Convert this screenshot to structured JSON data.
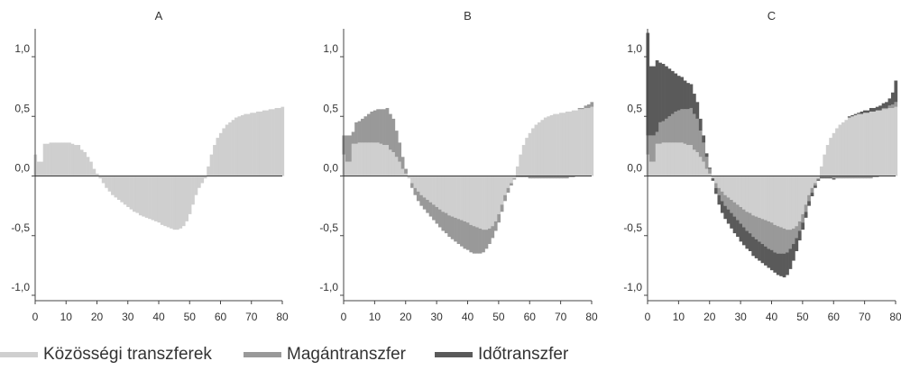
{
  "chart_data": [
    {
      "type": "area",
      "title": "A",
      "xlim": [
        0,
        80
      ],
      "ylim": [
        -1.0,
        1.0
      ],
      "xticks": [
        "0",
        "10",
        "20",
        "30",
        "40",
        "50",
        "60",
        "70",
        "80"
      ],
      "yticks": [
        "-1,0",
        "-0,5",
        "0,0",
        "0,5",
        "1,0"
      ],
      "series": [
        {
          "name": "Közösségi transzferek",
          "color": "#cfcfcf",
          "x": [
            0,
            1,
            2,
            3,
            4,
            5,
            6,
            7,
            8,
            9,
            10,
            11,
            12,
            13,
            14,
            15,
            16,
            17,
            18,
            19,
            20,
            21,
            22,
            23,
            24,
            25,
            26,
            27,
            28,
            29,
            30,
            31,
            32,
            33,
            34,
            35,
            36,
            37,
            38,
            39,
            40,
            41,
            42,
            43,
            44,
            45,
            46,
            47,
            48,
            49,
            50,
            51,
            52,
            53,
            54,
            55,
            56,
            57,
            58,
            59,
            60,
            61,
            62,
            63,
            64,
            65,
            66,
            67,
            68,
            69,
            70,
            71,
            72,
            73,
            74,
            75,
            76,
            77,
            78,
            79,
            80
          ],
          "values": [
            0.18,
            0.12,
            0.12,
            0.27,
            0.27,
            0.28,
            0.28,
            0.28,
            0.28,
            0.28,
            0.28,
            0.28,
            0.27,
            0.26,
            0.26,
            0.22,
            0.2,
            0.16,
            0.12,
            0.06,
            0.02,
            -0.02,
            -0.06,
            -0.1,
            -0.13,
            -0.16,
            -0.18,
            -0.2,
            -0.22,
            -0.24,
            -0.26,
            -0.28,
            -0.3,
            -0.31,
            -0.33,
            -0.34,
            -0.35,
            -0.36,
            -0.37,
            -0.38,
            -0.39,
            -0.41,
            -0.42,
            -0.43,
            -0.44,
            -0.45,
            -0.45,
            -0.44,
            -0.42,
            -0.38,
            -0.32,
            -0.24,
            -0.16,
            -0.1,
            -0.06,
            -0.02,
            0.08,
            0.18,
            0.26,
            0.32,
            0.36,
            0.4,
            0.43,
            0.45,
            0.47,
            0.49,
            0.5,
            0.51,
            0.52,
            0.52,
            0.53,
            0.53,
            0.54,
            0.54,
            0.55,
            0.55,
            0.56,
            0.56,
            0.57,
            0.57,
            0.58
          ]
        }
      ]
    },
    {
      "type": "area",
      "title": "B",
      "xlim": [
        0,
        80
      ],
      "ylim": [
        -1.0,
        1.0
      ],
      "xticks": [
        "0",
        "10",
        "20",
        "30",
        "40",
        "50",
        "60",
        "70",
        "80"
      ],
      "yticks": [
        "-1,0",
        "-0,5",
        "0,0",
        "0,5",
        "1,0"
      ],
      "series": [
        {
          "name": "Közösségi transzferek",
          "color": "#cfcfcf",
          "x": [
            0,
            1,
            2,
            3,
            4,
            5,
            6,
            7,
            8,
            9,
            10,
            11,
            12,
            13,
            14,
            15,
            16,
            17,
            18,
            19,
            20,
            21,
            22,
            23,
            24,
            25,
            26,
            27,
            28,
            29,
            30,
            31,
            32,
            33,
            34,
            35,
            36,
            37,
            38,
            39,
            40,
            41,
            42,
            43,
            44,
            45,
            46,
            47,
            48,
            49,
            50,
            51,
            52,
            53,
            54,
            55,
            56,
            57,
            58,
            59,
            60,
            61,
            62,
            63,
            64,
            65,
            66,
            67,
            68,
            69,
            70,
            71,
            72,
            73,
            74,
            75,
            76,
            77,
            78,
            79,
            80
          ],
          "values": [
            0.18,
            0.12,
            0.12,
            0.27,
            0.27,
            0.28,
            0.28,
            0.28,
            0.28,
            0.28,
            0.28,
            0.28,
            0.27,
            0.26,
            0.26,
            0.22,
            0.2,
            0.16,
            0.12,
            0.06,
            0.02,
            -0.02,
            -0.06,
            -0.1,
            -0.13,
            -0.16,
            -0.18,
            -0.2,
            -0.22,
            -0.24,
            -0.26,
            -0.28,
            -0.3,
            -0.31,
            -0.33,
            -0.34,
            -0.35,
            -0.36,
            -0.37,
            -0.38,
            -0.39,
            -0.41,
            -0.42,
            -0.43,
            -0.44,
            -0.45,
            -0.45,
            -0.44,
            -0.42,
            -0.38,
            -0.32,
            -0.24,
            -0.16,
            -0.1,
            -0.06,
            -0.02,
            0.08,
            0.18,
            0.26,
            0.32,
            0.36,
            0.4,
            0.43,
            0.45,
            0.47,
            0.49,
            0.5,
            0.51,
            0.52,
            0.52,
            0.53,
            0.53,
            0.54,
            0.54,
            0.55,
            0.55,
            0.56,
            0.56,
            0.57,
            0.57,
            0.58
          ]
        },
        {
          "name": "Magántranszfer",
          "color": "#999999",
          "x": [
            0,
            1,
            2,
            3,
            4,
            5,
            6,
            7,
            8,
            9,
            10,
            11,
            12,
            13,
            14,
            15,
            16,
            17,
            18,
            19,
            20,
            21,
            22,
            23,
            24,
            25,
            26,
            27,
            28,
            29,
            30,
            31,
            32,
            33,
            34,
            35,
            36,
            37,
            38,
            39,
            40,
            41,
            42,
            43,
            44,
            45,
            46,
            47,
            48,
            49,
            50,
            51,
            52,
            53,
            54,
            55,
            56,
            57,
            58,
            59,
            60,
            61,
            62,
            63,
            64,
            65,
            66,
            67,
            68,
            69,
            70,
            71,
            72,
            73,
            74,
            75,
            76,
            77,
            78,
            79,
            80
          ],
          "values": [
            0.16,
            0.22,
            0.22,
            0.1,
            0.18,
            0.18,
            0.2,
            0.22,
            0.24,
            0.26,
            0.27,
            0.28,
            0.29,
            0.3,
            0.31,
            0.3,
            0.28,
            0.22,
            0.16,
            0.1,
            0.04,
            0.0,
            -0.04,
            -0.06,
            -0.08,
            -0.09,
            -0.1,
            -0.11,
            -0.12,
            -0.13,
            -0.14,
            -0.15,
            -0.16,
            -0.17,
            -0.18,
            -0.19,
            -0.2,
            -0.21,
            -0.22,
            -0.23,
            -0.23,
            -0.23,
            -0.23,
            -0.22,
            -0.21,
            -0.19,
            -0.16,
            -0.13,
            -0.1,
            -0.08,
            -0.07,
            -0.06,
            -0.05,
            -0.04,
            -0.02,
            -0.01,
            -0.01,
            -0.01,
            -0.01,
            -0.01,
            -0.02,
            -0.02,
            -0.02,
            -0.02,
            -0.02,
            -0.02,
            -0.02,
            -0.02,
            -0.02,
            -0.02,
            -0.02,
            -0.02,
            -0.02,
            -0.01,
            -0.01,
            0.0,
            0.01,
            0.01,
            0.02,
            0.03,
            0.04
          ]
        }
      ]
    },
    {
      "type": "area",
      "title": "C",
      "xlim": [
        0,
        80
      ],
      "ylim": [
        -1.0,
        1.0
      ],
      "xticks": [
        "0",
        "10",
        "20",
        "30",
        "40",
        "50",
        "60",
        "70",
        "80"
      ],
      "yticks": [
        "-1,0",
        "-0,5",
        "0,0",
        "0,5",
        "1,0"
      ],
      "series": [
        {
          "name": "Közösségi transzferek",
          "color": "#cfcfcf",
          "x": [
            0,
            1,
            2,
            3,
            4,
            5,
            6,
            7,
            8,
            9,
            10,
            11,
            12,
            13,
            14,
            15,
            16,
            17,
            18,
            19,
            20,
            21,
            22,
            23,
            24,
            25,
            26,
            27,
            28,
            29,
            30,
            31,
            32,
            33,
            34,
            35,
            36,
            37,
            38,
            39,
            40,
            41,
            42,
            43,
            44,
            45,
            46,
            47,
            48,
            49,
            50,
            51,
            52,
            53,
            54,
            55,
            56,
            57,
            58,
            59,
            60,
            61,
            62,
            63,
            64,
            65,
            66,
            67,
            68,
            69,
            70,
            71,
            72,
            73,
            74,
            75,
            76,
            77,
            78,
            79,
            80
          ],
          "values": [
            0.18,
            0.12,
            0.12,
            0.27,
            0.27,
            0.28,
            0.28,
            0.28,
            0.28,
            0.28,
            0.28,
            0.28,
            0.27,
            0.26,
            0.26,
            0.22,
            0.2,
            0.16,
            0.12,
            0.06,
            0.02,
            -0.02,
            -0.06,
            -0.1,
            -0.13,
            -0.16,
            -0.18,
            -0.2,
            -0.22,
            -0.24,
            -0.26,
            -0.28,
            -0.3,
            -0.31,
            -0.33,
            -0.34,
            -0.35,
            -0.36,
            -0.37,
            -0.38,
            -0.39,
            -0.41,
            -0.42,
            -0.43,
            -0.44,
            -0.45,
            -0.45,
            -0.44,
            -0.42,
            -0.38,
            -0.32,
            -0.24,
            -0.16,
            -0.1,
            -0.06,
            -0.02,
            0.08,
            0.18,
            0.26,
            0.32,
            0.36,
            0.4,
            0.43,
            0.45,
            0.47,
            0.49,
            0.5,
            0.51,
            0.52,
            0.52,
            0.53,
            0.53,
            0.54,
            0.54,
            0.55,
            0.55,
            0.56,
            0.56,
            0.57,
            0.57,
            0.58
          ]
        },
        {
          "name": "Magántranszfer",
          "color": "#999999",
          "x": [
            0,
            1,
            2,
            3,
            4,
            5,
            6,
            7,
            8,
            9,
            10,
            11,
            12,
            13,
            14,
            15,
            16,
            17,
            18,
            19,
            20,
            21,
            22,
            23,
            24,
            25,
            26,
            27,
            28,
            29,
            30,
            31,
            32,
            33,
            34,
            35,
            36,
            37,
            38,
            39,
            40,
            41,
            42,
            43,
            44,
            45,
            46,
            47,
            48,
            49,
            50,
            51,
            52,
            53,
            54,
            55,
            56,
            57,
            58,
            59,
            60,
            61,
            62,
            63,
            64,
            65,
            66,
            67,
            68,
            69,
            70,
            71,
            72,
            73,
            74,
            75,
            76,
            77,
            78,
            79,
            80
          ],
          "values": [
            0.16,
            0.22,
            0.22,
            0.1,
            0.18,
            0.18,
            0.2,
            0.22,
            0.24,
            0.26,
            0.27,
            0.28,
            0.29,
            0.3,
            0.31,
            0.3,
            0.28,
            0.22,
            0.16,
            0.1,
            0.04,
            0.0,
            -0.04,
            -0.06,
            -0.08,
            -0.09,
            -0.1,
            -0.11,
            -0.12,
            -0.13,
            -0.14,
            -0.15,
            -0.16,
            -0.17,
            -0.18,
            -0.19,
            -0.2,
            -0.21,
            -0.22,
            -0.23,
            -0.23,
            -0.23,
            -0.23,
            -0.22,
            -0.21,
            -0.19,
            -0.16,
            -0.13,
            -0.1,
            -0.08,
            -0.07,
            -0.06,
            -0.05,
            -0.04,
            -0.02,
            -0.01,
            -0.01,
            -0.01,
            -0.01,
            -0.01,
            -0.02,
            -0.02,
            -0.02,
            -0.02,
            -0.02,
            -0.02,
            -0.02,
            -0.02,
            -0.02,
            -0.02,
            -0.02,
            -0.02,
            -0.02,
            -0.01,
            -0.01,
            0.0,
            0.01,
            0.01,
            0.02,
            0.03,
            0.04
          ]
        },
        {
          "name": "Időtranszfer",
          "color": "#5a5a5a",
          "x": [
            0,
            1,
            2,
            3,
            4,
            5,
            6,
            7,
            8,
            9,
            10,
            11,
            12,
            13,
            14,
            15,
            16,
            17,
            18,
            19,
            20,
            21,
            22,
            23,
            24,
            25,
            26,
            27,
            28,
            29,
            30,
            31,
            32,
            33,
            34,
            35,
            36,
            37,
            38,
            39,
            40,
            41,
            42,
            43,
            44,
            45,
            46,
            47,
            48,
            49,
            50,
            51,
            52,
            53,
            54,
            55,
            56,
            57,
            58,
            59,
            60,
            61,
            62,
            63,
            64,
            65,
            66,
            67,
            68,
            69,
            70,
            71,
            72,
            73,
            74,
            75,
            76,
            77,
            78,
            79,
            80
          ],
          "values": [
            0.86,
            0.58,
            0.58,
            0.6,
            0.5,
            0.48,
            0.44,
            0.4,
            0.36,
            0.32,
            0.29,
            0.27,
            0.24,
            0.22,
            0.2,
            0.17,
            0.14,
            0.1,
            0.06,
            0.03,
            0.01,
            -0.02,
            -0.05,
            -0.08,
            -0.1,
            -0.11,
            -0.12,
            -0.13,
            -0.14,
            -0.14,
            -0.15,
            -0.15,
            -0.15,
            -0.15,
            -0.16,
            -0.16,
            -0.16,
            -0.16,
            -0.16,
            -0.16,
            -0.17,
            -0.17,
            -0.18,
            -0.19,
            -0.2,
            -0.19,
            -0.17,
            -0.14,
            -0.11,
            -0.08,
            -0.06,
            -0.05,
            -0.04,
            -0.03,
            -0.02,
            -0.01,
            -0.01,
            -0.01,
            -0.01,
            -0.01,
            -0.01,
            0.0,
            0.0,
            0.0,
            0.0,
            0.01,
            0.01,
            0.01,
            0.01,
            0.02,
            0.02,
            0.02,
            0.03,
            0.03,
            0.03,
            0.04,
            0.04,
            0.05,
            0.06,
            0.1,
            0.18
          ]
        }
      ]
    }
  ],
  "legend": [
    {
      "label": "Közösségi transzferek",
      "color": "#cfcfcf"
    },
    {
      "label": "Magántranszfer",
      "color": "#999999"
    },
    {
      "label": "Időtranszfer",
      "color": "#5a5a5a"
    }
  ]
}
